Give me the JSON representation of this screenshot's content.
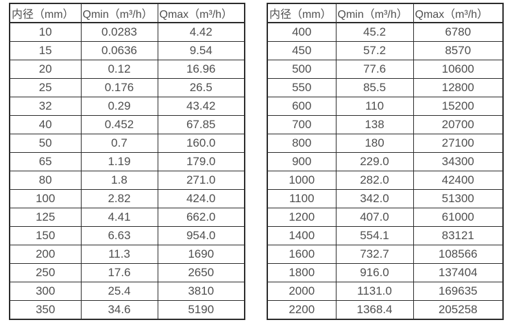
{
  "colors": {
    "border": "#2b2b2b",
    "text": "#4f4f4f",
    "background": "#ffffff"
  },
  "tables": [
    {
      "title": "small-diameter-flow-table",
      "headers": [
        "内径（mm）",
        "Qmin（m³/h）",
        "Qmax（m³/h）"
      ],
      "rows": [
        [
          "10",
          "0.0283",
          "4.42"
        ],
        [
          "15",
          "0.0636",
          "9.54"
        ],
        [
          "20",
          "0.12",
          "16.96"
        ],
        [
          "25",
          "0.176",
          "26.5"
        ],
        [
          "32",
          "0.29",
          "43.42"
        ],
        [
          "40",
          "0.452",
          "67.85"
        ],
        [
          "50",
          "0.7",
          "160.0"
        ],
        [
          "65",
          "1.19",
          "179.0"
        ],
        [
          "80",
          "1.8",
          "271.0"
        ],
        [
          "100",
          "2.82",
          "424.0"
        ],
        [
          "125",
          "4.41",
          "662.0"
        ],
        [
          "150",
          "6.63",
          "954.0"
        ],
        [
          "200",
          "11.3",
          "1690"
        ],
        [
          "250",
          "17.6",
          "2650"
        ],
        [
          "300",
          "25.4",
          "3810"
        ],
        [
          "350",
          "34.6",
          "5190"
        ]
      ]
    },
    {
      "title": "large-diameter-flow-table",
      "headers": [
        "内径（mm）",
        "Qmin（m³/h）",
        "Qmax（m³/h）"
      ],
      "rows": [
        [
          "400",
          "45.2",
          "6780"
        ],
        [
          "450",
          "57.2",
          "8570"
        ],
        [
          "500",
          "77.6",
          "10600"
        ],
        [
          "550",
          "85.5",
          "12800"
        ],
        [
          "600",
          "110",
          "15200"
        ],
        [
          "700",
          "138",
          "20700"
        ],
        [
          "800",
          "180",
          "27100"
        ],
        [
          "900",
          "229.0",
          "34300"
        ],
        [
          "1000",
          "282.0",
          "42400"
        ],
        [
          "1100",
          "342.0",
          "51300"
        ],
        [
          "1200",
          "407.0",
          "61000"
        ],
        [
          "1400",
          "554.1",
          "83121"
        ],
        [
          "1600",
          "732.7",
          "108566"
        ],
        [
          "1800",
          "916.0",
          "137404"
        ],
        [
          "2000",
          "1131.0",
          "169635"
        ],
        [
          "2200",
          "1368.4",
          "205258"
        ]
      ]
    }
  ]
}
